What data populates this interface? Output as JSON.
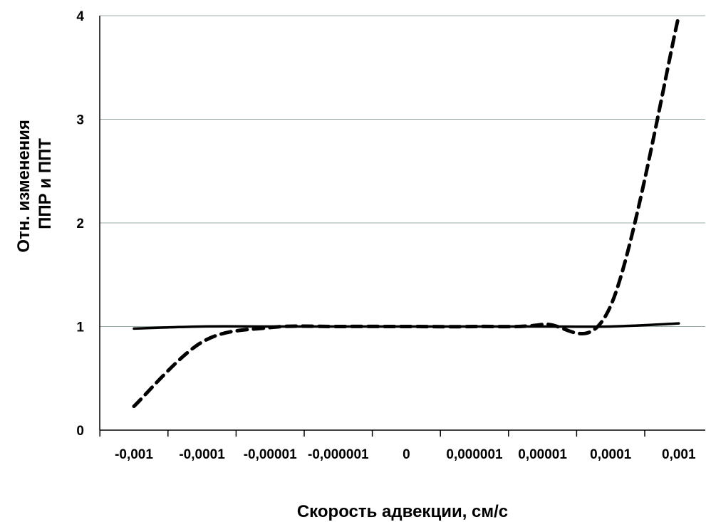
{
  "chart_data": {
    "type": "line",
    "title": "",
    "xlabel": "Скорость адвекции, см/с",
    "ylabel": [
      "Отн. изменения",
      "ППР и ППТ"
    ],
    "x": [
      "-0,001",
      "-0,0001",
      "-0,00001",
      "-0,000001",
      "0",
      "0,000001",
      "0,00001",
      "0,0001",
      "0,001"
    ],
    "x_tick_labels": [
      "-0,001",
      "-0,0001",
      "-0,00001",
      "-0,000001",
      "0",
      "0,000001",
      "0,00001",
      "0,0001",
      "0,001"
    ],
    "ylim": [
      0,
      4
    ],
    "y_ticks": [
      "0",
      "1",
      "2",
      "3",
      "4"
    ],
    "grid": "horizontal",
    "legend": "none",
    "series": [
      {
        "style": "solid",
        "color": "#000000",
        "values": [
          0.98,
          1.0,
          1.0,
          1.0,
          1.0,
          1.0,
          1.0,
          1.0,
          1.03
        ]
      },
      {
        "style": "dashed",
        "color": "#000000",
        "values": [
          0.23,
          0.85,
          0.99,
          1.0,
          1.0,
          1.0,
          1.02,
          1.2,
          4.0
        ]
      }
    ]
  }
}
